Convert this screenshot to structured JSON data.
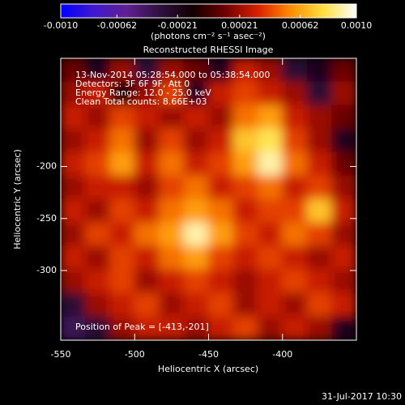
{
  "chart_data": {
    "type": "heatmap",
    "title": "Reconstructed RHESSI Image",
    "xlabel": "Heliocentric X (arcsec)",
    "ylabel": "Heliocentric Y (arcsec)",
    "xlim": [
      -550,
      -350
    ],
    "xticks": [
      -550,
      -500,
      -450,
      -400
    ],
    "ylim": [
      -367,
      -96
    ],
    "yticks": [
      -200,
      -250,
      -300
    ],
    "colorbar": {
      "label": "(photons cm⁻² s⁻¹ asec⁻²)",
      "lim": [
        -0.001,
        0.001
      ],
      "ticks": [
        {
          "value": -0.001,
          "label": "-0.0010"
        },
        -0.00062,
        -0.00021,
        0.00021,
        0.00062,
        {
          "value": 0.001,
          "label": "0.0010"
        }
      ]
    },
    "colorscale": [
      "#0000ff",
      "#4018d0",
      "#602090",
      "#301040",
      "#100000",
      "#700000",
      "#d82000",
      "#ff8c00",
      "#ffe040",
      "#ffffff"
    ],
    "annotations": [
      "13-Nov-2014 05:28:54.000 to 05:38:54.000",
      "Detectors: 3F 6F 9F, Att 0",
      "Energy Range: 12.0 - 25.0 keV",
      "Clean     Total counts: 8.66E+03"
    ],
    "peak_label": "Position of Peak = [-413,-201]",
    "footer": "31-Jul-2017 10:30",
    "values": [
      [
        0.0001,
        -0.0002,
        0.0002,
        -0.0003,
        0.0002,
        0.0001,
        -0.0002,
        0.0003,
        0.0002,
        -0.0003,
        -0.0002,
        0.0001
      ],
      [
        0.0002,
        0.0003,
        -0.0001,
        0.0002,
        0.0004,
        -0.0002,
        0.0003,
        0.0004,
        0.0003,
        0.0002,
        -0.0003,
        0.0002
      ],
      [
        0.0003,
        0.0002,
        0.0004,
        0.0003,
        0.0002,
        0.0003,
        0.0002,
        0.0005,
        0.0006,
        0.0003,
        0.0002,
        0.0001
      ],
      [
        0.0002,
        0.0003,
        0.0005,
        0.0002,
        0.0004,
        0.0002,
        0.0003,
        0.0007,
        0.0008,
        0.0004,
        0.0002,
        -0.0002
      ],
      [
        0.0003,
        0.0004,
        0.0006,
        0.0003,
        0.0005,
        0.0003,
        0.0004,
        0.0006,
        0.0009,
        0.0005,
        0.0003,
        0.0001
      ],
      [
        0.0002,
        0.0003,
        0.0003,
        0.0002,
        0.0004,
        0.0005,
        0.0003,
        0.0004,
        0.0005,
        0.0003,
        0.0004,
        0.0002
      ],
      [
        0.0003,
        0.0002,
        0.0004,
        0.0003,
        0.0005,
        0.0006,
        0.0005,
        0.0003,
        0.0004,
        0.0004,
        0.0007,
        0.0003
      ],
      [
        0.0002,
        0.0004,
        0.0003,
        0.0005,
        0.0006,
        0.0009,
        0.0006,
        0.0004,
        0.0003,
        0.0005,
        0.0004,
        0.0002
      ],
      [
        0.0003,
        0.0002,
        0.0004,
        0.0003,
        0.0005,
        0.0006,
        0.0004,
        0.0003,
        0.0004,
        0.0003,
        0.0002,
        0.0003
      ],
      [
        0.0002,
        0.0003,
        0.0004,
        0.0002,
        0.0003,
        0.0004,
        0.0003,
        0.0002,
        0.0003,
        0.0004,
        0.0003,
        0.0002
      ],
      [
        -0.0003,
        0.0002,
        0.0003,
        0.0004,
        0.0002,
        0.0003,
        0.0004,
        0.0002,
        0.0003,
        0.0002,
        0.0004,
        0.0003
      ],
      [
        -0.0004,
        -0.0003,
        0.0002,
        0.0003,
        0.0003,
        0.0002,
        0.0003,
        0.0004,
        0.0002,
        0.0003,
        0.0002,
        -0.0002
      ]
    ]
  }
}
